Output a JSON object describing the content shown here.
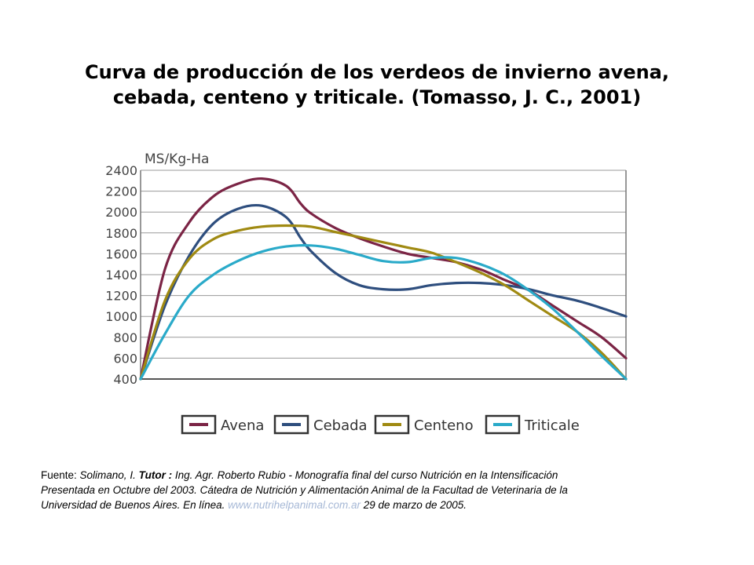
{
  "title": {
    "line1": "Curva de producción de los verdeos de invierno avena,",
    "line2": "cebada, centeno y triticale. (Tomasso, J. C., 2001)"
  },
  "chart_data": {
    "type": "line",
    "ylabel": "MS/Kg-Ha",
    "xlabel": "",
    "ylim": [
      400,
      2400
    ],
    "yticks": [
      400,
      600,
      800,
      1000,
      1200,
      1400,
      1600,
      1800,
      2000,
      2200,
      2400
    ],
    "xlim": [
      0,
      1
    ],
    "grid": true,
    "legend_position": "bottom",
    "series": [
      {
        "name": "Avena",
        "color": "#7b2445",
        "x": [
          0,
          0.05,
          0.1,
          0.15,
          0.2,
          0.25,
          0.3,
          0.33,
          0.35,
          0.4,
          0.45,
          0.5,
          0.55,
          0.6,
          0.65,
          0.7,
          0.75,
          0.8,
          0.85,
          0.9,
          0.95,
          1.0
        ],
        "values": [
          400,
          1450,
          1900,
          2150,
          2270,
          2320,
          2250,
          2080,
          1990,
          1850,
          1750,
          1670,
          1600,
          1560,
          1520,
          1450,
          1350,
          1250,
          1100,
          950,
          800,
          600
        ]
      },
      {
        "name": "Cebada",
        "color": "#2e4e7e",
        "x": [
          0,
          0.05,
          0.1,
          0.15,
          0.2,
          0.25,
          0.3,
          0.33,
          0.35,
          0.4,
          0.45,
          0.5,
          0.55,
          0.6,
          0.65,
          0.7,
          0.75,
          0.8,
          0.85,
          0.9,
          0.95,
          1.0
        ],
        "values": [
          400,
          1100,
          1580,
          1890,
          2030,
          2060,
          1950,
          1750,
          1630,
          1420,
          1300,
          1260,
          1260,
          1300,
          1320,
          1320,
          1300,
          1260,
          1200,
          1150,
          1080,
          1000
        ]
      },
      {
        "name": "Centeno",
        "color": "#a08a12",
        "x": [
          0,
          0.05,
          0.1,
          0.15,
          0.2,
          0.25,
          0.3,
          0.35,
          0.4,
          0.45,
          0.5,
          0.55,
          0.6,
          0.65,
          0.7,
          0.75,
          0.8,
          0.85,
          0.9,
          0.95,
          1.0
        ],
        "values": [
          400,
          1150,
          1550,
          1740,
          1820,
          1860,
          1870,
          1860,
          1810,
          1760,
          1710,
          1660,
          1610,
          1520,
          1420,
          1300,
          1150,
          1000,
          850,
          650,
          400
        ]
      },
      {
        "name": "Triticale",
        "color": "#2aaac9",
        "x": [
          0,
          0.05,
          0.1,
          0.15,
          0.2,
          0.25,
          0.3,
          0.35,
          0.4,
          0.45,
          0.5,
          0.55,
          0.6,
          0.65,
          0.7,
          0.75,
          0.8,
          0.85,
          0.9,
          0.95,
          1.0
        ],
        "values": [
          400,
          830,
          1200,
          1400,
          1530,
          1620,
          1670,
          1680,
          1650,
          1590,
          1530,
          1520,
          1560,
          1560,
          1500,
          1400,
          1250,
          1070,
          850,
          620,
          400
        ]
      }
    ]
  },
  "source": {
    "fuente_label": "Fuente: ",
    "author": "Solimano, I. ",
    "tutor_label": "Tutor : ",
    "line1_rest": "Ing. Agr. Roberto Rubio - Monografía final del curso Nutrición en la Intensificación",
    "line2": "Presentada en Octubre del 2003. Cátedra de Nutrición y Alimentación Animal de la Facultad de Veterinaria de la",
    "line3_text": "Universidad de Buenos Aires. En línea. ",
    "link": "www.nutrihelpanimal.com.ar",
    "line3_date": " 29 de marzo de 2005."
  }
}
